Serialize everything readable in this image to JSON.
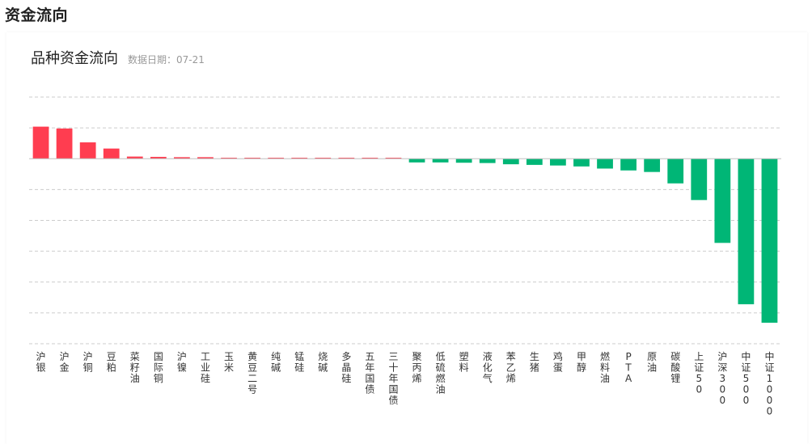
{
  "page": {
    "title": "资金流向"
  },
  "card": {
    "title": "品种资金流向",
    "date_label": "数据日期：",
    "date_value": "07-21"
  },
  "colors": {
    "positive": "#ff3d50",
    "negative": "#00b676",
    "grid": "#cccccc",
    "axis": "#bfbfbf"
  },
  "chart_data": {
    "type": "bar",
    "orientation": "vertical",
    "categories": [
      "沪银",
      "沪金",
      "沪铜",
      "豆粕",
      "菜籽油",
      "国际铜",
      "沪镍",
      "工业硅",
      "玉米",
      "黄豆二号",
      "纯碱",
      "锰硅",
      "烧碱",
      "多晶硅",
      "五年国债",
      "三十年国债",
      "聚丙烯",
      "低硫燃油",
      "塑料",
      "液化气",
      "苯乙烯",
      "生猪",
      "鸡蛋",
      "甲醇",
      "燃料油",
      "PTA",
      "原油",
      "碳酸锂",
      "上证50",
      "沪深300",
      "中证500",
      "中证1000"
    ],
    "values": [
      1.04,
      0.98,
      0.53,
      0.33,
      0.07,
      0.06,
      0.05,
      0.05,
      0.03,
      0.02,
      0.02,
      0.02,
      0.02,
      0.02,
      0.02,
      0.02,
      -0.12,
      -0.12,
      -0.13,
      -0.14,
      -0.18,
      -0.2,
      -0.22,
      -0.25,
      -0.32,
      -0.38,
      -0.43,
      -0.8,
      -1.34,
      -2.73,
      -4.72,
      -5.32
    ],
    "ylim": [
      -6,
      2
    ],
    "grid": true,
    "legend": "none"
  }
}
